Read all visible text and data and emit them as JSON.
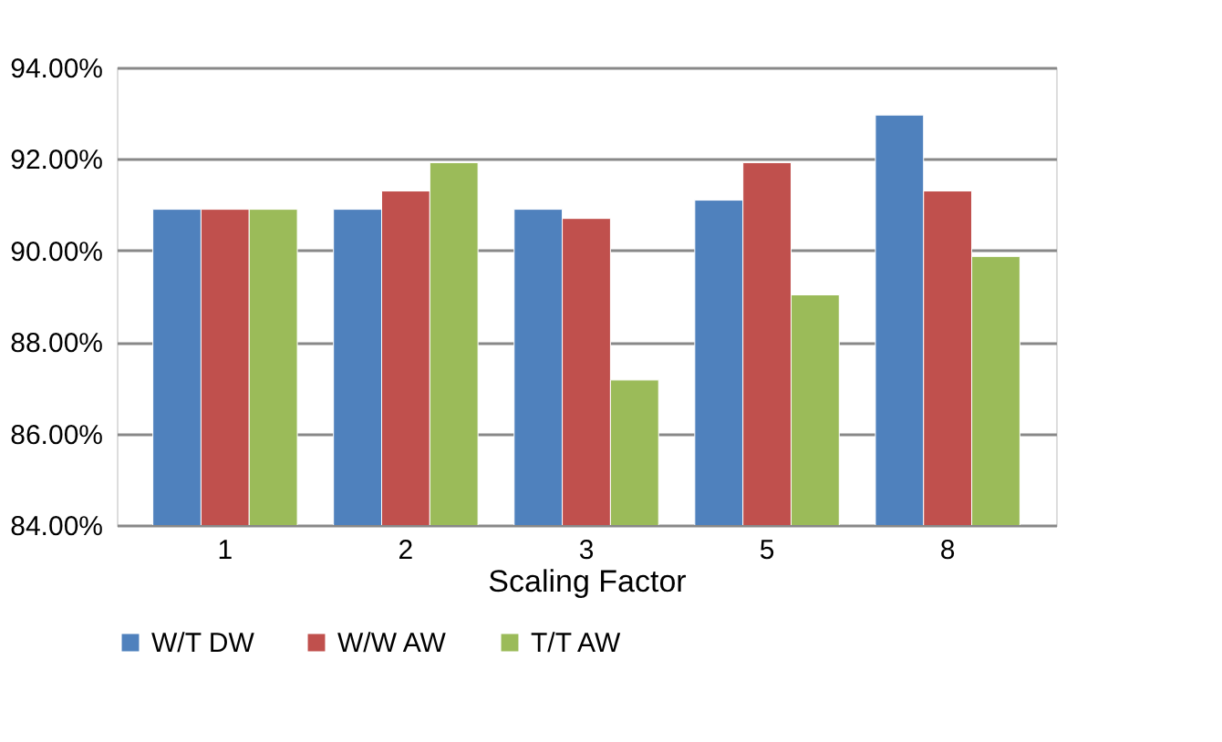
{
  "chart_data": {
    "type": "bar",
    "xlabel": "Scaling Factor",
    "categories": [
      "1",
      "2",
      "3",
      "5",
      "8"
    ],
    "series": [
      {
        "name": "W/T DW",
        "color": "#4f81bd",
        "values": [
          90.9,
          90.9,
          90.9,
          91.1,
          92.96
        ]
      },
      {
        "name": "W/W AW",
        "color": "#c0504d",
        "values": [
          90.9,
          91.3,
          90.7,
          91.92,
          91.3
        ]
      },
      {
        "name": "T/T AW",
        "color": "#9bbb59",
        "values": [
          90.9,
          91.92,
          87.17,
          89.03,
          89.87
        ]
      }
    ],
    "ylim": [
      84,
      94
    ],
    "yticks": [
      {
        "value": 84,
        "label": "84.00%"
      },
      {
        "value": 86,
        "label": "86.00%"
      },
      {
        "value": 88,
        "label": "88.00%"
      },
      {
        "value": 90,
        "label": "90.00%"
      },
      {
        "value": 92,
        "label": "92.00%"
      },
      {
        "value": 94,
        "label": "94.00%"
      }
    ],
    "grid": "y",
    "legend": "bottom"
  }
}
